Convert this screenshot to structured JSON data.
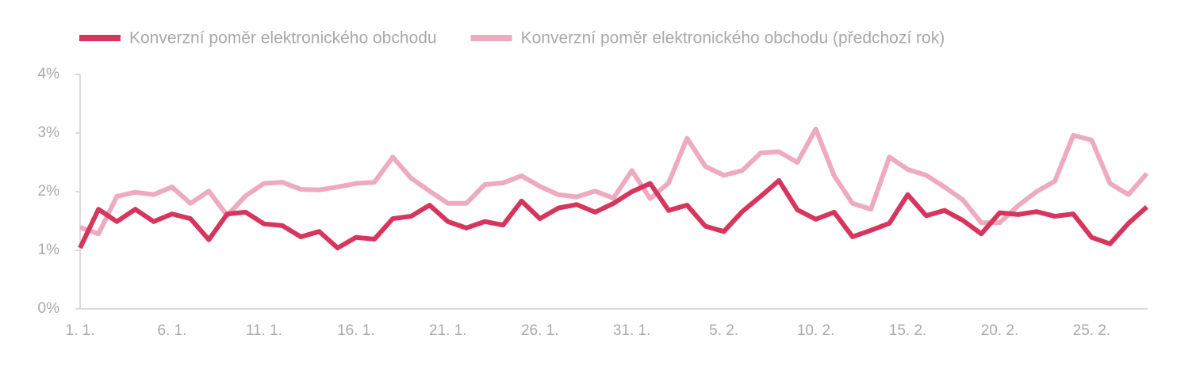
{
  "chart_data": {
    "type": "line",
    "categories": [
      "1. 1.",
      null,
      null,
      null,
      null,
      "6. 1.",
      null,
      null,
      null,
      null,
      "11. 1.",
      null,
      null,
      null,
      null,
      "16. 1.",
      null,
      null,
      null,
      null,
      "21. 1.",
      null,
      null,
      null,
      null,
      "26. 1.",
      null,
      null,
      null,
      null,
      "31. 1.",
      null,
      null,
      null,
      null,
      "5. 2.",
      null,
      null,
      null,
      null,
      "10. 2.",
      null,
      null,
      null,
      null,
      "15. 2.",
      null,
      null,
      null,
      null,
      "20. 2.",
      null,
      null,
      null,
      null,
      "25. 2.",
      null,
      null,
      null
    ],
    "series": [
      {
        "name": "Konverzní poměr elektronického obchodu",
        "color": "#d6365e",
        "values": [
          1.04,
          1.7,
          1.49,
          1.7,
          1.49,
          1.62,
          1.54,
          1.18,
          1.62,
          1.65,
          1.45,
          1.42,
          1.23,
          1.32,
          1.04,
          1.22,
          1.19,
          1.54,
          1.58,
          1.77,
          1.49,
          1.38,
          1.49,
          1.43,
          1.84,
          1.54,
          1.72,
          1.78,
          1.65,
          1.8,
          2.0,
          2.14,
          1.68,
          1.77,
          1.41,
          1.32,
          1.66,
          1.92,
          2.19,
          1.69,
          1.53,
          1.65,
          1.23,
          1.34,
          1.46,
          1.95,
          1.59,
          1.68,
          1.51,
          1.28,
          1.64,
          1.61,
          1.66,
          1.58,
          1.62,
          1.22,
          1.11,
          1.46,
          1.74
        ]
      },
      {
        "name": "Konverzní poměr elektronického obchodu (předchozí rok)",
        "color": "#eeaabf",
        "values": [
          1.39,
          1.28,
          1.92,
          1.99,
          1.95,
          2.08,
          1.8,
          2.01,
          1.59,
          1.93,
          2.14,
          2.16,
          2.04,
          2.03,
          2.08,
          2.14,
          2.16,
          2.59,
          2.23,
          2.01,
          1.8,
          1.8,
          2.12,
          2.15,
          2.27,
          2.09,
          1.95,
          1.91,
          2.01,
          1.89,
          2.36,
          1.88,
          2.15,
          2.91,
          2.43,
          2.28,
          2.36,
          2.66,
          2.68,
          2.5,
          3.07,
          2.27,
          1.8,
          1.7,
          2.59,
          2.38,
          2.28,
          2.08,
          1.86,
          1.47,
          1.47,
          1.76,
          2.0,
          2.18,
          2.96,
          2.88,
          2.14,
          1.95,
          2.31
        ]
      }
    ],
    "ylim": [
      0,
      4
    ],
    "yticks": [
      {
        "value": 0,
        "label": "0%"
      },
      {
        "value": 1,
        "label": "1%"
      },
      {
        "value": 2,
        "label": "2%"
      },
      {
        "value": 3,
        "label": "3%"
      },
      {
        "value": 4,
        "label": "4%"
      }
    ],
    "grid": false,
    "legend": "top"
  }
}
